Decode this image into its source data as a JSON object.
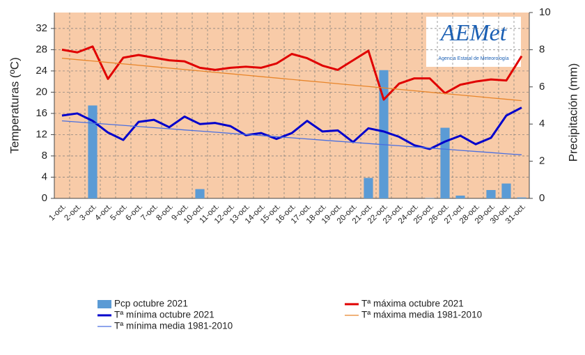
{
  "chart_data": {
    "type": "line",
    "categories": [
      "1-oct.",
      "2-oct.",
      "3-oct.",
      "4-oct.",
      "5-oct.",
      "6-oct.",
      "7-oct.",
      "8-oct.",
      "9-oct.",
      "10-oct.",
      "11-oct.",
      "12-oct.",
      "13-oct.",
      "14-oct.",
      "15-oct.",
      "16-oct.",
      "17-oct.",
      "18-oct.",
      "19-oct.",
      "20-oct.",
      "21-oct.",
      "22-oct.",
      "23-oct.",
      "24-oct.",
      "25-oct.",
      "26-oct.",
      "27-oct.",
      "28-oct.",
      "29-oct.",
      "30-oct.",
      "31-oct."
    ],
    "ylabel": "Temperaturas (ºC)",
    "y2label": "Precipitación (mm)",
    "ylim": [
      0,
      35
    ],
    "yticks": [
      0,
      4,
      8,
      12,
      16,
      20,
      24,
      28,
      32
    ],
    "y2lim": [
      0,
      10
    ],
    "y2ticks": [
      0,
      2,
      4,
      6,
      8,
      10
    ],
    "grid": true,
    "background": "#f8cba8",
    "logo": {
      "title": "AEMet",
      "subtitle": "Agencia Estatal de Meteorología"
    },
    "series": [
      {
        "name": "Pcp octubre 2021",
        "type": "bar",
        "axis": "y2",
        "color": "#5b9bd5",
        "values": [
          0,
          0,
          5.0,
          0,
          0,
          0,
          0,
          0,
          0,
          0.5,
          0,
          0,
          0,
          0,
          0,
          0,
          0,
          0,
          0,
          0,
          1.1,
          6.9,
          0,
          0,
          0.02,
          3.8,
          0.15,
          0,
          0.45,
          0.8,
          0.05
        ]
      },
      {
        "name": "Tª máxima octubre 2021",
        "type": "line",
        "color": "#e00000",
        "width": 3,
        "values": [
          28,
          27.5,
          28.6,
          22.5,
          26.5,
          27,
          26.5,
          26,
          25.8,
          24.6,
          24.2,
          24.6,
          24.8,
          24.6,
          25.4,
          27.2,
          26.4,
          25,
          24.2,
          26,
          27.8,
          18.6,
          21.6,
          22.6,
          22.6,
          19.8,
          21.4,
          22,
          22.4,
          22.2,
          26.8
        ]
      },
      {
        "name": "Tª mínima octubre 2021",
        "type": "line",
        "color": "#0000cc",
        "width": 3,
        "values": [
          15.6,
          16,
          14.6,
          12.4,
          11,
          14.4,
          14.8,
          13.4,
          15.4,
          14,
          14.2,
          13.6,
          11.9,
          12.3,
          11.2,
          12.3,
          14.6,
          12.6,
          12.8,
          10.6,
          13.2,
          12.6,
          11.6,
          10,
          9.3,
          10.7,
          11.8,
          10.2,
          11.4,
          15.6,
          17.1
        ]
      },
      {
        "name": "Tª máxima media 1981-2010",
        "type": "line",
        "color": "#e8852a",
        "width": 1.3,
        "values": [
          26.4,
          26.13,
          25.87,
          25.6,
          25.33,
          25.07,
          24.8,
          24.53,
          24.27,
          24,
          23.73,
          23.47,
          23.2,
          22.93,
          22.67,
          22.4,
          22.13,
          21.87,
          21.6,
          21.33,
          21.07,
          20.8,
          20.53,
          20.27,
          20,
          19.73,
          19.47,
          19.2,
          18.93,
          18.67,
          18.4
        ]
      },
      {
        "name": "Tª mínima media 1981-2010",
        "type": "line",
        "color": "#4a6fe0",
        "width": 1.3,
        "values": [
          14.6,
          14.39,
          14.17,
          13.96,
          13.75,
          13.53,
          13.32,
          13.11,
          12.89,
          12.68,
          12.47,
          12.25,
          12.04,
          11.83,
          11.61,
          11.4,
          11.19,
          10.97,
          10.76,
          10.55,
          10.33,
          10.12,
          9.91,
          9.69,
          9.48,
          9.27,
          9.05,
          8.84,
          8.63,
          8.41,
          8.2
        ]
      }
    ]
  }
}
